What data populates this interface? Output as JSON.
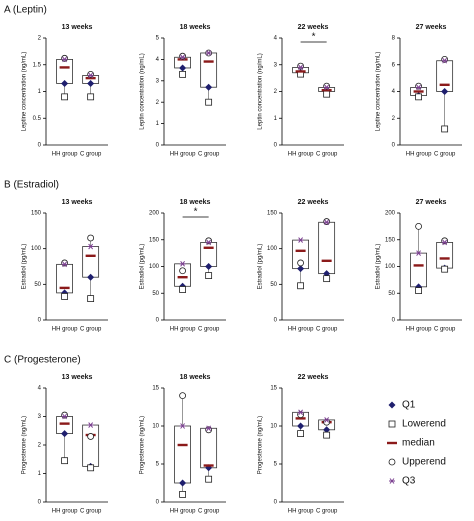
{
  "sections": [
    {
      "label": "A (Leptin)"
    },
    {
      "label": "B (Estradiol)"
    },
    {
      "label": "C (Progesterone)"
    }
  ],
  "chart_data": [
    {
      "type": "box",
      "title": "13 weeks",
      "y_label": "Leptine concentration (ng/mL)",
      "categories": [
        "HH group",
        "C group"
      ],
      "ylim": [
        0,
        2
      ],
      "yticks": [
        0,
        0.5,
        1,
        1.5,
        2
      ],
      "series": [
        {
          "name": "Q1",
          "marker": "diamond",
          "color": "#1f1f6e",
          "values": [
            1.15,
            1.15
          ]
        },
        {
          "name": "Lowerend",
          "marker": "square",
          "color": "#222222",
          "values": [
            0.9,
            0.9
          ]
        },
        {
          "name": "median",
          "marker": "dash",
          "color": "#8b1a1a",
          "values": [
            1.45,
            1.25
          ]
        },
        {
          "name": "Upperend",
          "marker": "circle",
          "color": "#222222",
          "values": [
            1.62,
            1.32
          ]
        },
        {
          "name": "Q3",
          "marker": "asterisk",
          "color": "#7a3f8f",
          "values": [
            1.6,
            1.3
          ]
        }
      ]
    },
    {
      "type": "box",
      "title": "18 weeks",
      "y_label": "Leptin concentration (ng/mL)",
      "categories": [
        "HH group",
        "C group"
      ],
      "ylim": [
        0,
        5
      ],
      "yticks": [
        0,
        1,
        2,
        3,
        4,
        5
      ],
      "series": [
        {
          "name": "Q1",
          "marker": "diamond",
          "color": "#1f1f6e",
          "values": [
            3.6,
            2.7
          ]
        },
        {
          "name": "Lowerend",
          "marker": "square",
          "color": "#222222",
          "values": [
            3.3,
            2.0
          ]
        },
        {
          "name": "median",
          "marker": "dash",
          "color": "#8b1a1a",
          "values": [
            4.0,
            3.9
          ]
        },
        {
          "name": "Upperend",
          "marker": "circle",
          "color": "#222222",
          "values": [
            4.15,
            4.3
          ]
        },
        {
          "name": "Q3",
          "marker": "asterisk",
          "color": "#7a3f8f",
          "values": [
            4.1,
            4.3
          ]
        }
      ]
    },
    {
      "type": "box",
      "title": "22 weeks",
      "y_label": "Leptin concentration (ng/mL)",
      "categories": [
        "HH group",
        "C group"
      ],
      "ylim": [
        0,
        4
      ],
      "yticks": [
        0,
        1,
        2,
        3,
        4
      ],
      "significance": "*",
      "series": [
        {
          "name": "Q1",
          "marker": "diamond",
          "color": "#1f1f6e",
          "values": [
            2.7,
            2.0
          ]
        },
        {
          "name": "Lowerend",
          "marker": "square",
          "color": "#222222",
          "values": [
            2.65,
            1.9
          ]
        },
        {
          "name": "median",
          "marker": "dash",
          "color": "#8b1a1a",
          "values": [
            2.75,
            2.05
          ]
        },
        {
          "name": "Upperend",
          "marker": "circle",
          "color": "#222222",
          "values": [
            2.95,
            2.2
          ]
        },
        {
          "name": "Q3",
          "marker": "asterisk",
          "color": "#7a3f8f",
          "values": [
            2.9,
            2.15
          ]
        }
      ]
    },
    {
      "type": "box",
      "title": "27 weeks",
      "y_label": "Leptine concentration (ng/mL)",
      "categories": [
        "HH group",
        "C group"
      ],
      "ylim": [
        0,
        8
      ],
      "yticks": [
        0,
        2,
        4,
        6,
        8
      ],
      "series": [
        {
          "name": "Q1",
          "marker": "diamond",
          "color": "#1f1f6e",
          "values": [
            3.7,
            4.0
          ]
        },
        {
          "name": "Lowerend",
          "marker": "square",
          "color": "#222222",
          "values": [
            3.6,
            1.2
          ]
        },
        {
          "name": "median",
          "marker": "dash",
          "color": "#8b1a1a",
          "values": [
            4.0,
            4.5
          ]
        },
        {
          "name": "Upperend",
          "marker": "circle",
          "color": "#222222",
          "values": [
            4.4,
            6.4
          ]
        },
        {
          "name": "Q3",
          "marker": "asterisk",
          "color": "#7a3f8f",
          "values": [
            4.3,
            6.3
          ]
        }
      ]
    },
    {
      "type": "box",
      "title": "13 weeks",
      "y_label": "Estradiol (pg/mL)",
      "categories": [
        "HH group",
        "C group"
      ],
      "ylim": [
        0,
        150
      ],
      "yticks": [
        0,
        50,
        100,
        150
      ],
      "series": [
        {
          "name": "Q1",
          "marker": "diamond",
          "color": "#1f1f6e",
          "values": [
            38,
            60
          ]
        },
        {
          "name": "Lowerend",
          "marker": "square",
          "color": "#222222",
          "values": [
            33,
            30
          ]
        },
        {
          "name": "median",
          "marker": "dash",
          "color": "#8b1a1a",
          "values": [
            45,
            90
          ]
        },
        {
          "name": "Upperend",
          "marker": "circle",
          "color": "#222222",
          "values": [
            80,
            115
          ]
        },
        {
          "name": "Q3",
          "marker": "asterisk",
          "color": "#7a3f8f",
          "values": [
            78,
            103
          ]
        }
      ]
    },
    {
      "type": "box",
      "title": "18 weeks",
      "y_label": "Estradiol (pg/mL)",
      "categories": [
        "HH group",
        "C group"
      ],
      "ylim": [
        0,
        200
      ],
      "yticks": [
        0,
        50,
        100,
        150,
        200
      ],
      "significance": "*",
      "series": [
        {
          "name": "Q1",
          "marker": "diamond",
          "color": "#1f1f6e",
          "values": [
            63,
            100
          ]
        },
        {
          "name": "Lowerend",
          "marker": "square",
          "color": "#222222",
          "values": [
            57,
            83
          ]
        },
        {
          "name": "median",
          "marker": "dash",
          "color": "#8b1a1a",
          "values": [
            80,
            135
          ]
        },
        {
          "name": "Upperend",
          "marker": "circle",
          "color": "#222222",
          "values": [
            92,
            148
          ]
        },
        {
          "name": "Q3",
          "marker": "asterisk",
          "color": "#7a3f8f",
          "values": [
            105,
            145
          ]
        }
      ]
    },
    {
      "type": "box",
      "title": "22 weeks",
      "y_label": "Estradiol (pg/mL)",
      "categories": [
        "HH group",
        "C group"
      ],
      "ylim": [
        0,
        150
      ],
      "yticks": [
        0,
        50,
        100,
        150
      ],
      "series": [
        {
          "name": "Q1",
          "marker": "diamond",
          "color": "#1f1f6e",
          "values": [
            72,
            65
          ]
        },
        {
          "name": "Lowerend",
          "marker": "square",
          "color": "#222222",
          "values": [
            48,
            58
          ]
        },
        {
          "name": "median",
          "marker": "dash",
          "color": "#8b1a1a",
          "values": [
            97,
            83
          ]
        },
        {
          "name": "Upperend",
          "marker": "circle",
          "color": "#222222",
          "values": [
            80,
            138
          ]
        },
        {
          "name": "Q3",
          "marker": "asterisk",
          "color": "#7a3f8f",
          "values": [
            112,
            137
          ]
        }
      ]
    },
    {
      "type": "box",
      "title": "27 weeks",
      "y_label": "Estradiol (pg/mL)",
      "categories": [
        "HH group",
        "C group"
      ],
      "ylim": [
        0,
        200
      ],
      "yticks": [
        0,
        50,
        100,
        150,
        200
      ],
      "series": [
        {
          "name": "Q1",
          "marker": "diamond",
          "color": "#1f1f6e",
          "values": [
            62,
            97
          ]
        },
        {
          "name": "Lowerend",
          "marker": "square",
          "color": "#222222",
          "values": [
            55,
            95
          ]
        },
        {
          "name": "median",
          "marker": "dash",
          "color": "#8b1a1a",
          "values": [
            102,
            115
          ]
        },
        {
          "name": "Upperend",
          "marker": "circle",
          "color": "#222222",
          "values": [
            175,
            148
          ]
        },
        {
          "name": "Q3",
          "marker": "asterisk",
          "color": "#7a3f8f",
          "values": [
            125,
            145
          ]
        }
      ]
    },
    {
      "type": "box",
      "title": "13 weeks",
      "y_label": "Progesterone (ng/mL)",
      "categories": [
        "HH group",
        "C group"
      ],
      "ylim": [
        0,
        4
      ],
      "yticks": [
        0,
        1,
        2,
        3,
        4
      ],
      "series": [
        {
          "name": "Q1",
          "marker": "diamond",
          "color": "#1f1f6e",
          "values": [
            2.4,
            1.25
          ]
        },
        {
          "name": "Lowerend",
          "marker": "square",
          "color": "#222222",
          "values": [
            1.45,
            1.2
          ]
        },
        {
          "name": "median",
          "marker": "dash",
          "color": "#8b1a1a",
          "values": [
            2.75,
            2.35
          ]
        },
        {
          "name": "Upperend",
          "marker": "circle",
          "color": "#222222",
          "values": [
            3.05,
            2.3
          ]
        },
        {
          "name": "Q3",
          "marker": "asterisk",
          "color": "#7a3f8f",
          "values": [
            3.0,
            2.7
          ]
        }
      ]
    },
    {
      "type": "box",
      "title": "18 weeks",
      "y_label": "Progesterone (ng/mL)",
      "categories": [
        "HH group",
        "C group"
      ],
      "ylim": [
        0,
        15
      ],
      "yticks": [
        0,
        5,
        10,
        15
      ],
      "series": [
        {
          "name": "Q1",
          "marker": "diamond",
          "color": "#1f1f6e",
          "values": [
            2.5,
            4.5
          ]
        },
        {
          "name": "Lowerend",
          "marker": "square",
          "color": "#222222",
          "values": [
            1,
            3
          ]
        },
        {
          "name": "median",
          "marker": "dash",
          "color": "#8b1a1a",
          "values": [
            7.5,
            4.8
          ]
        },
        {
          "name": "Upperend",
          "marker": "circle",
          "color": "#222222",
          "values": [
            14,
            9.5
          ]
        },
        {
          "name": "Q3",
          "marker": "asterisk",
          "color": "#7a3f8f",
          "values": [
            10,
            9.7
          ]
        }
      ]
    },
    {
      "type": "box",
      "title": "22 weeks",
      "y_label": "Progesterone (ng/mL)",
      "categories": [
        "HH group",
        "C group"
      ],
      "ylim": [
        0,
        15
      ],
      "yticks": [
        0,
        5,
        10,
        15
      ],
      "series": [
        {
          "name": "Q1",
          "marker": "diamond",
          "color": "#1f1f6e",
          "values": [
            10,
            9.5
          ]
        },
        {
          "name": "Lowerend",
          "marker": "square",
          "color": "#222222",
          "values": [
            9,
            8.8
          ]
        },
        {
          "name": "median",
          "marker": "dash",
          "color": "#8b1a1a",
          "values": [
            11,
            10.5
          ]
        },
        {
          "name": "Upperend",
          "marker": "circle",
          "color": "#222222",
          "values": [
            11.5,
            10.5
          ]
        },
        {
          "name": "Q3",
          "marker": "asterisk",
          "color": "#7a3f8f",
          "values": [
            11.8,
            10.8
          ]
        }
      ]
    }
  ]
}
